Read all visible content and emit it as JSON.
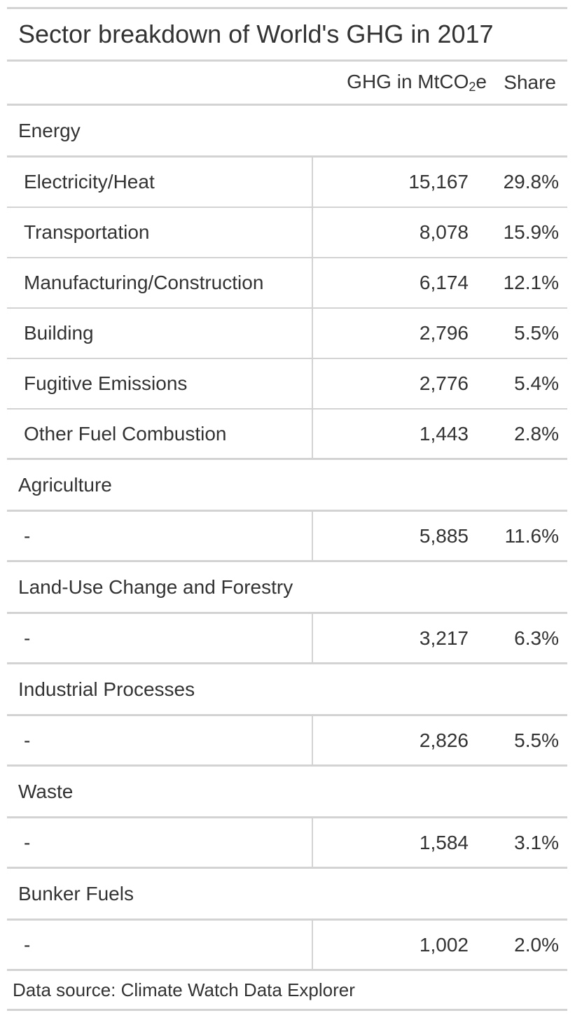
{
  "chart_data": {
    "type": "table",
    "title": "Sector breakdown of World's GHG in 2017",
    "columns": {
      "ghg_prefix": "GHG in MtCO",
      "ghg_sub": "2",
      "ghg_suffix": "e",
      "share": "Share"
    },
    "groups": [
      {
        "name": "Energy",
        "rows": [
          {
            "label": "Electricity/Heat",
            "ghg": "15,167",
            "share": "29.8%"
          },
          {
            "label": "Transportation",
            "ghg": "8,078",
            "share": "15.9%"
          },
          {
            "label": "Manufacturing/Construction",
            "ghg": "6,174",
            "share": "12.1%"
          },
          {
            "label": "Building",
            "ghg": "2,796",
            "share": "5.5%"
          },
          {
            "label": "Fugitive Emissions",
            "ghg": "2,776",
            "share": "5.4%"
          },
          {
            "label": "Other Fuel Combustion",
            "ghg": "1,443",
            "share": "2.8%"
          }
        ]
      },
      {
        "name": "Agriculture",
        "rows": [
          {
            "label": "-",
            "ghg": "5,885",
            "share": "11.6%"
          }
        ]
      },
      {
        "name": "Land-Use Change and Forestry",
        "rows": [
          {
            "label": "-",
            "ghg": "3,217",
            "share": "6.3%"
          }
        ]
      },
      {
        "name": "Industrial Processes",
        "rows": [
          {
            "label": "-",
            "ghg": "2,826",
            "share": "5.5%"
          }
        ]
      },
      {
        "name": "Waste",
        "rows": [
          {
            "label": "-",
            "ghg": "1,584",
            "share": "3.1%"
          }
        ]
      },
      {
        "name": "Bunker Fuels",
        "rows": [
          {
            "label": "-",
            "ghg": "1,002",
            "share": "2.0%"
          }
        ]
      }
    ],
    "source": "Data source: Climate Watch Data Explorer"
  }
}
